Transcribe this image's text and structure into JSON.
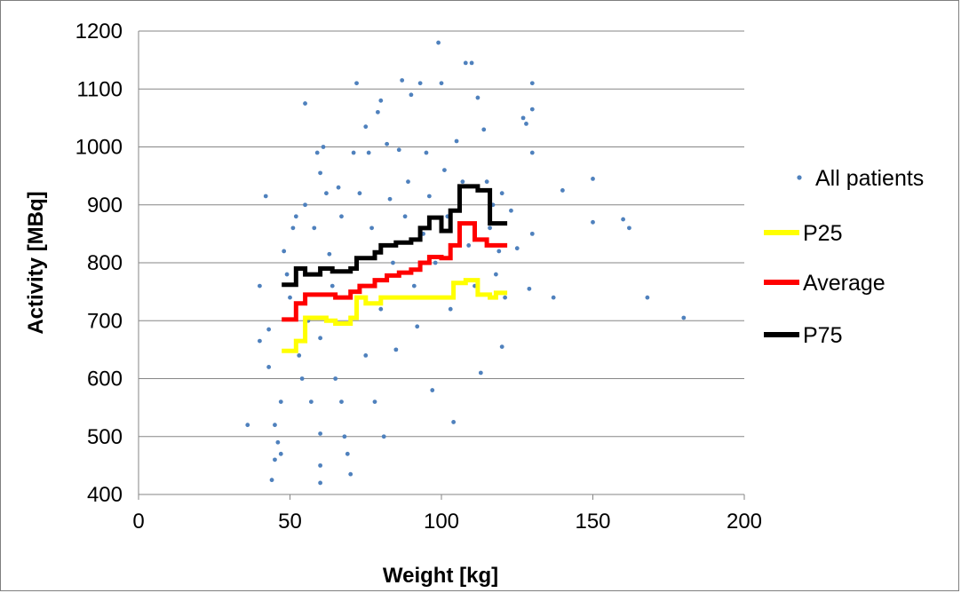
{
  "chart_data": {
    "type": "scatter",
    "title": "",
    "xlabel": "Weight [kg]",
    "ylabel": "Activity [MBq]",
    "xlim": [
      0,
      200
    ],
    "ylim": [
      400,
      1200
    ],
    "x_ticks": [
      "0",
      "50",
      "100",
      "150",
      "200"
    ],
    "y_ticks": [
      "400",
      "500",
      "600",
      "700",
      "800",
      "900",
      "1000",
      "1100",
      "1200"
    ],
    "grid": "horizontal",
    "legend_position": "right",
    "series": [
      {
        "name": "All patients",
        "kind": "scatter",
        "color": "#4f81bd",
        "points": [
          [
            36,
            520
          ],
          [
            40,
            760
          ],
          [
            40,
            665
          ],
          [
            42,
            915
          ],
          [
            43,
            685
          ],
          [
            43,
            620
          ],
          [
            44,
            425
          ],
          [
            45,
            460
          ],
          [
            45,
            520
          ],
          [
            46,
            490
          ],
          [
            47,
            560
          ],
          [
            47,
            470
          ],
          [
            48,
            820
          ],
          [
            49,
            780
          ],
          [
            50,
            740
          ],
          [
            51,
            860
          ],
          [
            52,
            880
          ],
          [
            53,
            640
          ],
          [
            54,
            600
          ],
          [
            55,
            1075
          ],
          [
            55,
            900
          ],
          [
            55,
            780
          ],
          [
            56,
            700
          ],
          [
            57,
            560
          ],
          [
            58,
            860
          ],
          [
            59,
            990
          ],
          [
            60,
            955
          ],
          [
            60,
            670
          ],
          [
            60,
            505
          ],
          [
            60,
            450
          ],
          [
            60,
            420
          ],
          [
            61,
            1000
          ],
          [
            62,
            920
          ],
          [
            63,
            815
          ],
          [
            64,
            760
          ],
          [
            65,
            600
          ],
          [
            66,
            930
          ],
          [
            67,
            880
          ],
          [
            67,
            560
          ],
          [
            68,
            500
          ],
          [
            69,
            470
          ],
          [
            70,
            700
          ],
          [
            70,
            435
          ],
          [
            71,
            990
          ],
          [
            72,
            1110
          ],
          [
            73,
            920
          ],
          [
            74,
            760
          ],
          [
            75,
            1035
          ],
          [
            75,
            640
          ],
          [
            76,
            990
          ],
          [
            77,
            860
          ],
          [
            78,
            560
          ],
          [
            79,
            1060
          ],
          [
            80,
            1080
          ],
          [
            80,
            720
          ],
          [
            81,
            500
          ],
          [
            82,
            1005
          ],
          [
            83,
            910
          ],
          [
            84,
            800
          ],
          [
            85,
            650
          ],
          [
            86,
            995
          ],
          [
            87,
            1115
          ],
          [
            88,
            880
          ],
          [
            89,
            940
          ],
          [
            90,
            1090
          ],
          [
            91,
            760
          ],
          [
            92,
            690
          ],
          [
            93,
            1110
          ],
          [
            94,
            850
          ],
          [
            95,
            990
          ],
          [
            96,
            915
          ],
          [
            97,
            580
          ],
          [
            98,
            800
          ],
          [
            99,
            1180
          ],
          [
            100,
            1110
          ],
          [
            101,
            960
          ],
          [
            102,
            880
          ],
          [
            103,
            720
          ],
          [
            104,
            525
          ],
          [
            105,
            1010
          ],
          [
            106,
            905
          ],
          [
            107,
            940
          ],
          [
            108,
            1145
          ],
          [
            109,
            830
          ],
          [
            110,
            1145
          ],
          [
            111,
            760
          ],
          [
            112,
            1085
          ],
          [
            113,
            610
          ],
          [
            114,
            1030
          ],
          [
            115,
            940
          ],
          [
            116,
            860
          ],
          [
            117,
            900
          ],
          [
            118,
            780
          ],
          [
            119,
            820
          ],
          [
            120,
            655
          ],
          [
            120,
            920
          ],
          [
            121,
            740
          ],
          [
            123,
            890
          ],
          [
            125,
            825
          ],
          [
            127,
            1050
          ],
          [
            128,
            1040
          ],
          [
            129,
            755
          ],
          [
            130,
            1110
          ],
          [
            130,
            1065
          ],
          [
            130,
            990
          ],
          [
            130,
            850
          ],
          [
            137,
            740
          ],
          [
            140,
            925
          ],
          [
            150,
            945
          ],
          [
            150,
            870
          ],
          [
            160,
            875
          ],
          [
            162,
            860
          ],
          [
            168,
            740
          ],
          [
            180,
            705
          ]
        ]
      },
      {
        "name": "P25",
        "kind": "step",
        "color": "#ffff00",
        "points": [
          [
            48,
            648
          ],
          [
            52,
            648
          ],
          [
            52,
            665
          ],
          [
            55,
            665
          ],
          [
            55,
            705
          ],
          [
            62,
            705
          ],
          [
            62,
            700
          ],
          [
            65,
            700
          ],
          [
            65,
            695
          ],
          [
            70,
            695
          ],
          [
            70,
            705
          ],
          [
            72,
            705
          ],
          [
            72,
            740
          ],
          [
            75,
            740
          ],
          [
            75,
            730
          ],
          [
            80,
            730
          ],
          [
            80,
            740
          ],
          [
            104,
            740
          ],
          [
            104,
            765
          ],
          [
            108,
            765
          ],
          [
            108,
            770
          ],
          [
            112,
            770
          ],
          [
            112,
            745
          ],
          [
            116,
            745
          ],
          [
            116,
            740
          ],
          [
            118,
            740
          ],
          [
            118,
            748
          ],
          [
            121,
            748
          ]
        ]
      },
      {
        "name": "Average",
        "kind": "step",
        "color": "#ff0000",
        "points": [
          [
            48,
            702
          ],
          [
            52,
            702
          ],
          [
            52,
            730
          ],
          [
            55,
            730
          ],
          [
            55,
            745
          ],
          [
            65,
            745
          ],
          [
            65,
            740
          ],
          [
            70,
            740
          ],
          [
            70,
            750
          ],
          [
            73,
            750
          ],
          [
            73,
            760
          ],
          [
            78,
            760
          ],
          [
            78,
            770
          ],
          [
            82,
            770
          ],
          [
            82,
            778
          ],
          [
            86,
            778
          ],
          [
            86,
            783
          ],
          [
            90,
            783
          ],
          [
            90,
            788
          ],
          [
            93,
            788
          ],
          [
            93,
            800
          ],
          [
            96,
            800
          ],
          [
            96,
            810
          ],
          [
            100,
            810
          ],
          [
            100,
            808
          ],
          [
            103,
            808
          ],
          [
            103,
            830
          ],
          [
            106,
            830
          ],
          [
            106,
            868
          ],
          [
            111,
            868
          ],
          [
            111,
            840
          ],
          [
            115,
            840
          ],
          [
            115,
            830
          ],
          [
            121,
            830
          ]
        ]
      },
      {
        "name": "P75",
        "kind": "step",
        "color": "#000000",
        "points": [
          [
            48,
            762
          ],
          [
            52,
            762
          ],
          [
            52,
            790
          ],
          [
            55,
            790
          ],
          [
            55,
            780
          ],
          [
            60,
            780
          ],
          [
            60,
            790
          ],
          [
            64,
            790
          ],
          [
            64,
            785
          ],
          [
            70,
            785
          ],
          [
            70,
            790
          ],
          [
            72,
            790
          ],
          [
            72,
            808
          ],
          [
            78,
            808
          ],
          [
            78,
            818
          ],
          [
            80,
            818
          ],
          [
            80,
            830
          ],
          [
            85,
            830
          ],
          [
            85,
            835
          ],
          [
            90,
            835
          ],
          [
            90,
            840
          ],
          [
            93,
            840
          ],
          [
            93,
            860
          ],
          [
            96,
            860
          ],
          [
            96,
            878
          ],
          [
            100,
            878
          ],
          [
            100,
            855
          ],
          [
            103,
            855
          ],
          [
            103,
            890
          ],
          [
            106,
            890
          ],
          [
            106,
            932
          ],
          [
            112,
            932
          ],
          [
            112,
            925
          ],
          [
            116,
            925
          ],
          [
            116,
            868
          ],
          [
            121,
            868
          ]
        ]
      }
    ]
  }
}
